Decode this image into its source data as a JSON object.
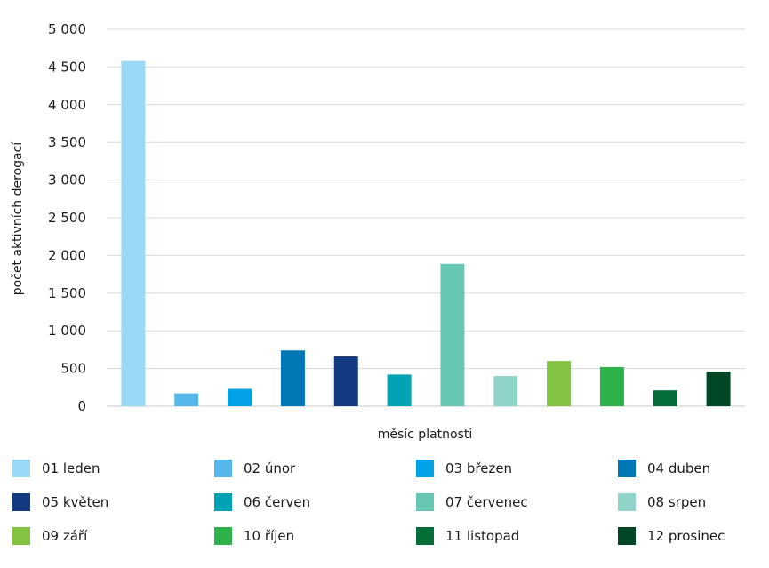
{
  "chart_data": {
    "type": "bar",
    "title": "",
    "xlabel": "měsíc platnosti",
    "ylabel": "počet aktivních derogací",
    "ylim": [
      0,
      5000
    ],
    "y_ticks": [
      0,
      500,
      1000,
      1500,
      2000,
      2500,
      3000,
      3500,
      4000,
      4500,
      5000
    ],
    "y_tick_labels": [
      "0",
      "500",
      "1 000",
      "1 500",
      "2 000",
      "2 500",
      "3 000",
      "3 500",
      "4 000",
      "4 500",
      "5 000"
    ],
    "grid": true,
    "legend_position": "bottom",
    "series": [
      {
        "name": "01 leden",
        "value": 4580,
        "color": "#99d9f5"
      },
      {
        "name": "02 únor",
        "value": 170,
        "color": "#56b8ea"
      },
      {
        "name": "03 březen",
        "value": 230,
        "color": "#00a3e8"
      },
      {
        "name": "04 duben",
        "value": 740,
        "color": "#0077b6"
      },
      {
        "name": "05 květen",
        "value": 660,
        "color": "#123a80"
      },
      {
        "name": "06 červen",
        "value": 420,
        "color": "#00a2b3"
      },
      {
        "name": "07 červenec",
        "value": 1890,
        "color": "#66c7b4"
      },
      {
        "name": "08 srpen",
        "value": 400,
        "color": "#8fd3c9"
      },
      {
        "name": "09 září",
        "value": 600,
        "color": "#82c341"
      },
      {
        "name": "10 říjen",
        "value": 520,
        "color": "#2eb24b"
      },
      {
        "name": "11 listopad",
        "value": 210,
        "color": "#046d38"
      },
      {
        "name": "12 prosinec",
        "value": 460,
        "color": "#004728"
      }
    ]
  }
}
